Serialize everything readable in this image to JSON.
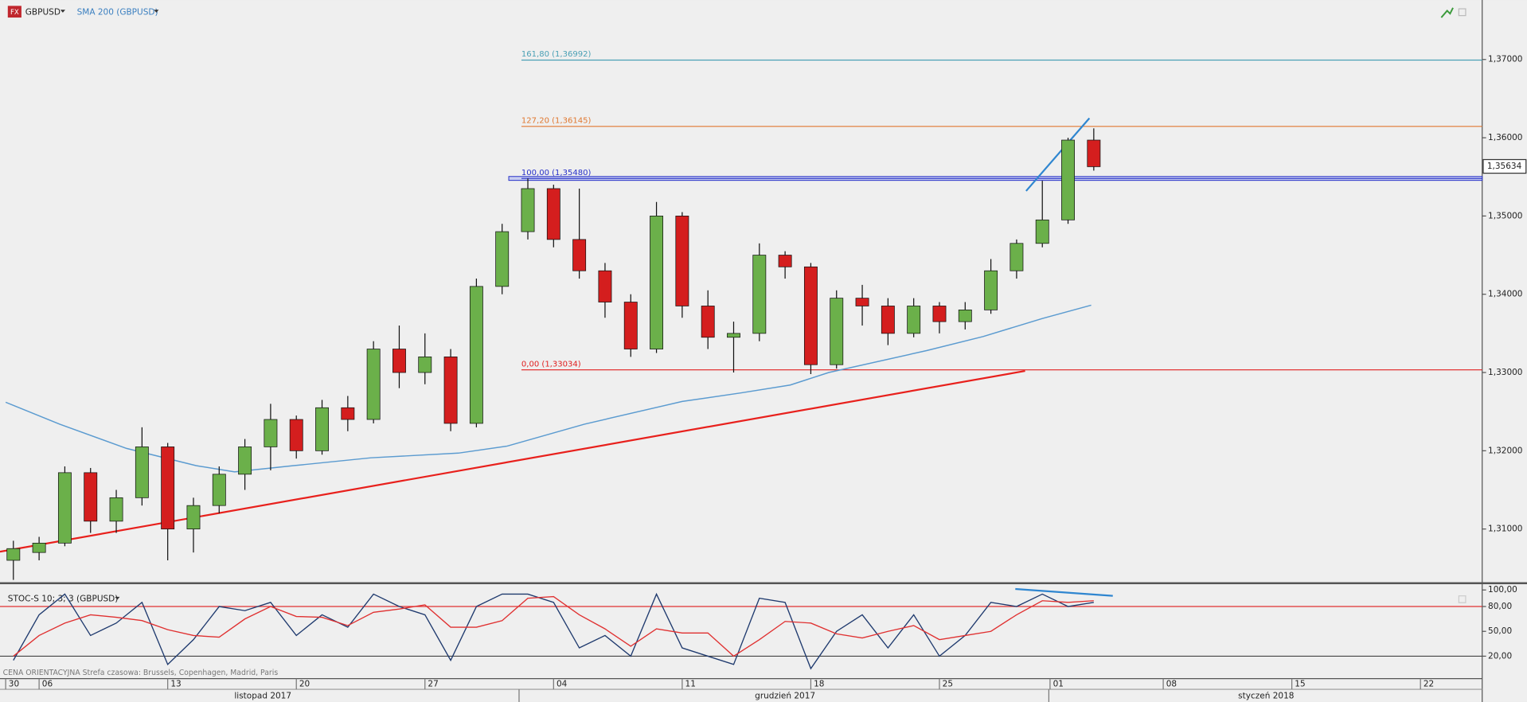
{
  "toolbar": {
    "icon": "FX"
  },
  "chart_data": [
    {
      "type": "candlestick",
      "title": "GBPUSD",
      "x": [
        4,
        5,
        6,
        7,
        8,
        9,
        10,
        11,
        12,
        13,
        14,
        15,
        16,
        17,
        18,
        19,
        20,
        21,
        22,
        23,
        24,
        25,
        26,
        27,
        28,
        29,
        30,
        31,
        32,
        33,
        34,
        35,
        36,
        37,
        38,
        39,
        40,
        41,
        42,
        43,
        44,
        45,
        46
      ],
      "open": [
        1.306,
        1.307,
        1.3082,
        1.3172,
        1.311,
        1.314,
        1.3205,
        1.31,
        1.313,
        1.317,
        1.3205,
        1.324,
        1.32,
        1.3255,
        1.324,
        1.333,
        1.33,
        1.332,
        1.3235,
        1.341,
        1.348,
        1.3535,
        1.347,
        1.343,
        1.339,
        1.333,
        1.35,
        1.3385,
        1.3345,
        1.335,
        1.345,
        1.3435,
        1.331,
        1.3395,
        1.3385,
        1.335,
        1.3385,
        1.3365,
        1.338,
        1.343,
        1.3465,
        1.3495,
        1.3597
      ],
      "high": [
        1.3085,
        1.309,
        1.318,
        1.3178,
        1.315,
        1.323,
        1.321,
        1.314,
        1.318,
        1.3215,
        1.326,
        1.3245,
        1.3265,
        1.327,
        1.334,
        1.336,
        1.335,
        1.333,
        1.342,
        1.349,
        1.3548,
        1.354,
        1.3535,
        1.344,
        1.34,
        1.3518,
        1.3505,
        1.3405,
        1.3365,
        1.3465,
        1.3455,
        1.344,
        1.3405,
        1.3412,
        1.3395,
        1.3395,
        1.339,
        1.339,
        1.3445,
        1.347,
        1.3545,
        1.36,
        1.3612
      ],
      "low": [
        1.3035,
        1.306,
        1.3078,
        1.3095,
        1.3095,
        1.313,
        1.306,
        1.307,
        1.312,
        1.315,
        1.3175,
        1.319,
        1.3195,
        1.3225,
        1.3235,
        1.328,
        1.3285,
        1.3225,
        1.323,
        1.34,
        1.347,
        1.346,
        1.342,
        1.337,
        1.332,
        1.3325,
        1.337,
        1.333,
        1.33,
        1.334,
        1.342,
        1.3298,
        1.3305,
        1.336,
        1.3335,
        1.3345,
        1.335,
        1.3355,
        1.3375,
        1.342,
        1.346,
        1.349,
        1.3558
      ],
      "close": [
        1.3075,
        1.3082,
        1.3172,
        1.311,
        1.314,
        1.3205,
        1.31,
        1.313,
        1.317,
        1.3205,
        1.324,
        1.32,
        1.3255,
        1.324,
        1.333,
        1.33,
        1.332,
        1.3235,
        1.341,
        1.348,
        1.3535,
        1.347,
        1.343,
        1.339,
        1.333,
        1.35,
        1.3385,
        1.3345,
        1.335,
        1.345,
        1.3435,
        1.331,
        1.3395,
        1.3385,
        1.335,
        1.3385,
        1.3365,
        1.338,
        1.343,
        1.3465,
        1.3495,
        1.3597,
        1.3563
      ],
      "up_color": "#6bb04a",
      "down_color": "#d41e1e",
      "overlays": [
        {
          "name": "SMA 200 (GBPUSD)",
          "color": "#5b9bd0",
          "x": [
            3.7,
            5.8,
            8.4,
            11.1,
            12.6,
            14.9,
            17.9,
            21.3,
            23.2,
            26.2,
            30,
            32.3,
            34.2,
            35.7,
            39.5,
            41.7,
            44.0,
            45.9
          ],
          "values": [
            1.3262,
            1.3234,
            1.3203,
            1.3181,
            1.3173,
            1.3181,
            1.3191,
            1.3197,
            1.3206,
            1.3234,
            1.3263,
            1.3274,
            1.3284,
            1.33,
            1.3328,
            1.3346,
            1.3369,
            1.3386
          ]
        }
      ],
      "fib_levels": [
        {
          "value": 1.36992,
          "label": "161,80 (1,36992)",
          "color": "#4aa0b5",
          "x": 23.75
        },
        {
          "value": 1.36145,
          "label": "127,20 (1,36145)",
          "color": "#e07830",
          "x": 23.75
        },
        {
          "value": 1.3548,
          "label": "100,00 (1,35480)",
          "color": "#2630c8",
          "x": 23.75
        },
        {
          "value": 1.33034,
          "label": "0,00 (1,33034)",
          "color": "#e02020",
          "x": 23.75
        }
      ],
      "trendlines": [
        {
          "color": "#e8201c",
          "x": [
            3.48,
            43.33
          ],
          "values": [
            1.3071,
            1.3302
          ]
        },
        {
          "color": "#2f86d0",
          "x": [
            43.37,
            45.83
          ],
          "values": [
            1.3532,
            1.3625
          ]
        }
      ],
      "last_price": {
        "value": 1.35634,
        "label": "1,35634"
      },
      "xlim": [
        3.48,
        61.1
      ],
      "ylim": [
        1.3032,
        1.3776
      ],
      "yticks": [
        {
          "value": 1.31,
          "label": "1,31000"
        },
        {
          "value": 1.32,
          "label": "1,32000"
        },
        {
          "value": 1.33,
          "label": "1,33000"
        },
        {
          "value": 1.34,
          "label": "1,34000"
        },
        {
          "value": 1.35,
          "label": "1,35000"
        },
        {
          "value": 1.36,
          "label": "1,36000"
        },
        {
          "value": 1.37,
          "label": "1,37000"
        }
      ],
      "xticks": [
        {
          "value": 3.7,
          "label": "30"
        },
        {
          "value": 5,
          "label": "06"
        },
        {
          "value": 10,
          "label": "13"
        },
        {
          "value": 15,
          "label": "20"
        },
        {
          "value": 20,
          "label": "27"
        },
        {
          "value": 25,
          "label": "04"
        },
        {
          "value": 30,
          "label": "11"
        },
        {
          "value": 35,
          "label": "18"
        },
        {
          "value": 40,
          "label": "25"
        },
        {
          "value": 44.3,
          "label": "01"
        },
        {
          "value": 48.7,
          "label": "08"
        },
        {
          "value": 53.7,
          "label": "15"
        },
        {
          "value": 58.7,
          "label": "22"
        }
      ],
      "month_labels": [
        {
          "value": 13.7,
          "label": "listopad 2017"
        },
        {
          "value": 34,
          "label": "grudzień 2017"
        },
        {
          "value": 52.7,
          "label": "styczeń 2018"
        }
      ],
      "footer": "CENA ORIENTACYJNA   Strefa czasowa: Brussels, Copenhagen, Madrid, Paris"
    },
    {
      "type": "line",
      "title": "STOC-S 10; 3; 3 (GBPUSD)",
      "x": [
        4,
        5,
        6,
        7,
        8,
        9,
        10,
        11,
        12,
        13,
        14,
        15,
        16,
        17,
        18,
        19,
        20,
        21,
        22,
        23,
        24,
        25,
        26,
        27,
        28,
        29,
        30,
        31,
        32,
        33,
        34,
        35,
        36,
        37,
        38,
        39,
        40,
        41,
        42,
        43,
        44,
        45,
        46
      ],
      "series": [
        {
          "color": "#1f3a6e",
          "values": [
            15,
            70,
            95,
            45,
            60,
            85,
            10,
            40,
            80,
            75,
            85,
            45,
            70,
            55,
            95,
            80,
            70,
            15,
            80,
            95,
            95,
            85,
            30,
            45,
            20,
            95,
            30,
            20,
            10,
            90,
            85,
            5,
            50,
            70,
            30,
            70,
            20,
            45,
            85,
            80,
            95,
            80,
            85
          ]
        },
        {
          "color": "#e03030",
          "values": [
            20,
            45,
            60,
            70,
            67,
            63,
            52,
            45,
            43,
            65,
            80,
            68,
            67,
            57,
            73,
            77,
            82,
            55,
            55,
            63,
            90,
            92,
            70,
            53,
            32,
            53,
            48,
            48,
            20,
            40,
            62,
            60,
            47,
            42,
            50,
            57,
            40,
            45,
            50,
            70,
            87,
            85,
            87
          ]
        }
      ],
      "levels": [
        {
          "value": 80,
          "color": "#e03030"
        },
        {
          "value": 20,
          "color": "#444444"
        }
      ],
      "trendlines": [
        {
          "color": "#2f86d0",
          "x": [
            42.95,
            46.74
          ],
          "values": [
            101.2,
            92.9
          ]
        }
      ],
      "xlim": [
        3.48,
        61.1
      ],
      "ylim": [
        -7.1,
        107
      ],
      "yticks": [
        {
          "value": 100,
          "label": "100,00"
        },
        {
          "value": 80,
          "label": "80,00"
        },
        {
          "value": 50,
          "label": "50,00"
        },
        {
          "value": 20,
          "label": "20,00"
        }
      ]
    }
  ]
}
